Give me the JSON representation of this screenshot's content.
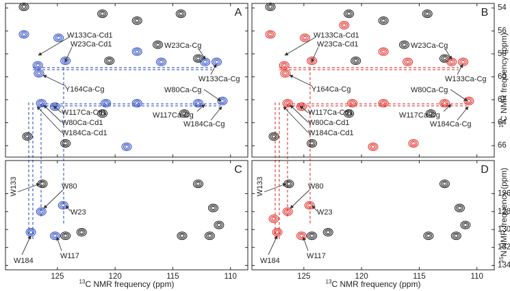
{
  "chart_data": [
    {
      "type": "scatter",
      "label": "A",
      "xlim": [
        129.5,
        108.5
      ],
      "ylim": [
        53.6,
        67.0
      ],
      "xticks": [
        125,
        120,
        115,
        110
      ],
      "yticks": [
        54,
        56,
        58,
        60,
        62,
        64,
        66
      ],
      "show_xtick_labels": false,
      "show_ytick_labels": false,
      "series": [
        {
          "color": "#111111",
          "x": [
            121.1,
            118.1,
            114.3,
            116.3,
            112.8,
            121.1,
            114.0,
            127.9,
            127.6,
            124.3,
            120.5
          ],
          "y": [
            54.5,
            55.1,
            54.5,
            57.2,
            58.4,
            63.2,
            63.2,
            53.9,
            65.2,
            65.8,
            58.6
          ]
        },
        {
          "color": "#1f3fbf",
          "x": [
            127.9,
            126.7,
            126.6,
            124.9,
            124.3,
            118.1,
            116.0,
            112.2,
            111.2,
            126.4,
            125.2,
            120.8,
            118.1,
            112.8,
            110.7,
            119.0
          ],
          "y": [
            56.3,
            59.0,
            59.7,
            56.6,
            58.6,
            57.8,
            58.7,
            58.7,
            58.7,
            62.3,
            62.6,
            62.3,
            62.3,
            62.3,
            62.1,
            66.1
          ]
        }
      ],
      "annotations": [
        "W133Ca-Cd1",
        "W23Ca-Cd1",
        "W23Ca-Cg",
        "W133Ca-Cg",
        "Y164Ca-Cg",
        "W80Ca-Cg",
        "W117Ca-Cd1",
        "W117Ca-Cg",
        "W80Ca-Cd1",
        "W184Ca-Cg",
        "W184Ca-Cd1"
      ]
    },
    {
      "type": "scatter",
      "label": "B",
      "xlim": [
        129.5,
        108.5
      ],
      "ylim": [
        53.6,
        67.0
      ],
      "xticks": [
        125,
        120,
        115,
        110
      ],
      "yticks": [
        54,
        56,
        58,
        60,
        62,
        64,
        66
      ],
      "show_xtick_labels": false,
      "show_ytick_labels": true,
      "ylabel": "13C NMR frequency (ppm)",
      "series": [
        {
          "color": "#111111",
          "x": [
            121.1,
            118.1,
            114.3,
            116.3,
            112.8,
            121.1,
            114.0,
            127.9,
            127.6,
            124.3,
            120.5
          ],
          "y": [
            54.5,
            55.1,
            54.5,
            57.2,
            58.4,
            63.2,
            63.2,
            53.9,
            65.2,
            65.8,
            58.6
          ]
        },
        {
          "color": "#e0201b",
          "x": [
            127.9,
            126.7,
            126.6,
            124.9,
            124.3,
            118.1,
            116.0,
            112.2,
            111.2,
            126.4,
            125.2,
            120.8,
            118.1,
            112.8,
            110.7,
            119.0,
            115.5,
            121.5
          ],
          "y": [
            56.3,
            59.0,
            59.7,
            56.6,
            58.6,
            57.8,
            58.7,
            58.7,
            58.7,
            62.3,
            62.6,
            62.3,
            62.3,
            62.3,
            62.1,
            66.1,
            65.8,
            55.5
          ]
        }
      ],
      "annotations": [
        "W133Ca-Cd1",
        "W23Ca-Cd1",
        "W23Ca-Cg",
        "W133Ca-Cg",
        "Y164Ca-Cg",
        "W80Ca-Cg",
        "W117Ca-Cd1",
        "W117Ca-Cg",
        "W80Ca-Cd1",
        "W184Ca-Cg",
        "W184Ca-Cd1"
      ]
    },
    {
      "type": "scatter",
      "label": "C",
      "xlim": [
        129.5,
        108.5
      ],
      "ylim": [
        122.3,
        134.5
      ],
      "xticks": [
        125,
        120,
        115,
        110
      ],
      "yticks": [
        126,
        128,
        130,
        132,
        134
      ],
      "show_xtick_labels": true,
      "show_ytick_labels": false,
      "xlabel": "13C NMR frequency (ppm)",
      "series": [
        {
          "color": "#111111",
          "x": [
            126.3,
            124.3,
            112.8,
            111.5,
            111.0,
            114.2,
            111.8,
            122.9
          ],
          "y": [
            124.9,
            130.7,
            124.9,
            127.6,
            129.5,
            130.7,
            130.7,
            130.3
          ]
        },
        {
          "color": "#1f3fbf",
          "x": [
            127.3,
            126.4,
            124.5,
            125.2
          ],
          "y": [
            130.3,
            128.0,
            127.3,
            130.7
          ]
        }
      ],
      "annotations": [
        "W133",
        "W80",
        "W23",
        "W184",
        "W117"
      ]
    },
    {
      "type": "scatter",
      "label": "D",
      "xlim": [
        129.5,
        108.5
      ],
      "ylim": [
        122.3,
        134.5
      ],
      "xticks": [
        125,
        120,
        115,
        110
      ],
      "yticks": [
        126,
        128,
        130,
        132,
        134
      ],
      "show_xtick_labels": true,
      "show_ytick_labels": true,
      "xlabel": "13C NMR frequency (ppm)",
      "ylabel": "15N NMR frequency (ppm)",
      "series": [
        {
          "color": "#111111",
          "x": [
            126.3,
            124.3,
            112.8,
            111.5,
            111.0,
            114.2,
            111.8,
            122.9
          ],
          "y": [
            124.9,
            130.7,
            124.9,
            127.6,
            129.5,
            130.7,
            130.7,
            130.3
          ]
        },
        {
          "color": "#e0201b",
          "x": [
            127.3,
            126.4,
            124.5,
            125.2,
            127.6
          ],
          "y": [
            130.3,
            128.0,
            127.3,
            130.7,
            128.8
          ]
        }
      ],
      "annotations": [
        "W133",
        "W80",
        "W23",
        "W184",
        "W117"
      ]
    }
  ]
}
